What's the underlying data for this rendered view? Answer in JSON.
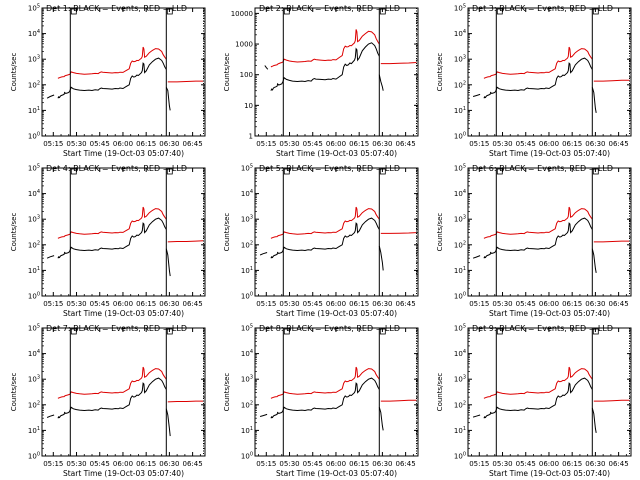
{
  "chart_data": {
    "type": "line",
    "title_template": "Det {n}: BLACK = Events, RED = LLD",
    "xlabel": "Start Time (19-Oct-03 05:07:40)",
    "ylabel": "Counts/sec",
    "x_tick_labels": [
      "05:15",
      "05:30",
      "05:45",
      "06:00",
      "06:15",
      "06:30",
      "06:45"
    ],
    "x_tick_minutes": [
      15,
      30,
      45,
      60,
      75,
      90,
      105
    ],
    "xlim_minutes": [
      7.7,
      113
    ],
    "markers_minutes": [
      26,
      88,
      112
    ],
    "colors": {
      "events": "#000000",
      "lld": "#dd0000",
      "axes": "#000000"
    },
    "legend": "in title",
    "shared_series": {
      "x": [
        18,
        18.5,
        19,
        19.5,
        20,
        21,
        22,
        22.3,
        23,
        24,
        25,
        25.8,
        26.5,
        28,
        30,
        32,
        35,
        38,
        40,
        42,
        44,
        45,
        46,
        47,
        50,
        53,
        55,
        57,
        58,
        60,
        62,
        64,
        65,
        66,
        67,
        68,
        69,
        70,
        72,
        72.5,
        73,
        73.5,
        74,
        75,
        77,
        79,
        81,
        83,
        85,
        86,
        87,
        87.5,
        88
      ],
      "events": [
        30,
        34,
        32,
        36,
        38,
        40,
        42,
        50,
        46,
        48,
        50,
        60,
        80,
        70,
        65,
        62,
        60,
        62,
        60,
        64,
        62,
        70,
        75,
        72,
        70,
        68,
        72,
        70,
        75,
        72,
        85,
        100,
        180,
        220,
        200,
        210,
        240,
        230,
        300,
        360,
        700,
        650,
        300,
        350,
        600,
        800,
        1000,
        1100,
        900,
        700,
        500,
        450,
        400
      ],
      "lld": [
        180,
        185,
        190,
        195,
        200,
        205,
        210,
        220,
        230,
        240,
        250,
        260,
        320,
        300,
        280,
        270,
        260,
        265,
        270,
        280,
        275,
        300,
        320,
        310,
        300,
        290,
        300,
        295,
        310,
        305,
        360,
        420,
        700,
        850,
        800,
        820,
        900,
        880,
        1100,
        1300,
        3000,
        2500,
        1200,
        1300,
        1800,
        2200,
        2600,
        2500,
        2000,
        1500,
        1200,
        1100,
        1000
      ]
    },
    "panels": [
      {
        "det": 1,
        "ylabel": "Counts/sec",
        "ylim": [
          1,
          100000
        ],
        "ytick_labels": [
          "10^0",
          "10^1",
          "10^2",
          "10^3",
          "10^4",
          "10^5"
        ],
        "pre_events": [
          [
            11,
            30
          ],
          [
            13,
            35
          ],
          [
            15.5,
            40
          ]
        ],
        "lld_right": [
          [
            89,
            130
          ],
          [
            95,
            130
          ],
          [
            101,
            135
          ],
          [
            107,
            140
          ],
          [
            112,
            140
          ]
        ],
        "events_right": [
          [
            88,
            80
          ],
          [
            89,
            60
          ],
          [
            90,
            15
          ],
          [
            90.5,
            10
          ]
        ]
      },
      {
        "det": 2,
        "ylabel": "Counts/sec",
        "ylim": [
          1,
          15000
        ],
        "ytick_labels": [
          "1",
          "10",
          "100",
          "1000",
          "10000"
        ],
        "pre_events": [
          [
            14,
            200
          ],
          [
            15,
            170
          ],
          [
            16,
            150
          ]
        ],
        "lld_right": [
          [
            89,
            230
          ],
          [
            95,
            230
          ],
          [
            101,
            235
          ],
          [
            107,
            240
          ],
          [
            112,
            250
          ]
        ],
        "events_right": [
          [
            88,
            100
          ],
          [
            89,
            60
          ],
          [
            90,
            40
          ],
          [
            90.5,
            30
          ]
        ]
      },
      {
        "det": 3,
        "ylabel": "Counts/sec",
        "ylim": [
          1,
          100000
        ],
        "ytick_labels": [
          "10^0",
          "10^1",
          "10^2",
          "10^3",
          "10^4",
          "10^5"
        ],
        "pre_events": [
          [
            11,
            35
          ],
          [
            13,
            38
          ],
          [
            15.5,
            42
          ]
        ],
        "lld_right": [
          [
            89,
            140
          ],
          [
            95,
            140
          ],
          [
            101,
            145
          ],
          [
            107,
            150
          ],
          [
            112,
            150
          ]
        ],
        "events_right": [
          [
            88,
            80
          ],
          [
            89,
            50
          ],
          [
            90,
            12
          ],
          [
            90.5,
            8
          ]
        ]
      },
      {
        "det": 4,
        "ylabel": "Counts/sec",
        "ylim": [
          1,
          100000
        ],
        "ytick_labels": [
          "10^0",
          "10^1",
          "10^2",
          "10^3",
          "10^4",
          "10^5"
        ],
        "pre_events": [
          [
            11,
            30
          ],
          [
            13,
            34
          ],
          [
            15.5,
            38
          ]
        ],
        "lld_right": [
          [
            89,
            130
          ],
          [
            95,
            135
          ],
          [
            101,
            135
          ],
          [
            107,
            140
          ],
          [
            112,
            145
          ]
        ],
        "events_right": [
          [
            88,
            70
          ],
          [
            89,
            40
          ],
          [
            90,
            10
          ],
          [
            90.5,
            6
          ]
        ]
      },
      {
        "det": 5,
        "ylabel": "Counts/sec",
        "ylim": [
          1,
          100000
        ],
        "ytick_labels": [
          "10^0",
          "10^1",
          "10^2",
          "10^3",
          "10^4",
          "10^5"
        ],
        "pre_events": [
          [
            11,
            40
          ],
          [
            13,
            45
          ],
          [
            15.5,
            50
          ]
        ],
        "lld_right": [
          [
            89,
            280
          ],
          [
            95,
            280
          ],
          [
            101,
            285
          ],
          [
            107,
            290
          ],
          [
            112,
            300
          ]
        ],
        "events_right": [
          [
            88,
            90
          ],
          [
            89,
            50
          ],
          [
            90,
            20
          ],
          [
            90.5,
            10
          ]
        ]
      },
      {
        "det": 6,
        "ylabel": "Counts/sec",
        "ylim": [
          1,
          100000
        ],
        "ytick_labels": [
          "10^0",
          "10^1",
          "10^2",
          "10^3",
          "10^4",
          "10^5"
        ],
        "pre_events": [
          [
            11,
            30
          ],
          [
            13,
            33
          ],
          [
            15.5,
            38
          ]
        ],
        "lld_right": [
          [
            89,
            130
          ],
          [
            95,
            130
          ],
          [
            101,
            135
          ],
          [
            107,
            140
          ],
          [
            112,
            140
          ]
        ],
        "events_right": [
          [
            88,
            70
          ],
          [
            89,
            40
          ],
          [
            90,
            12
          ],
          [
            90.5,
            8
          ]
        ]
      },
      {
        "det": 7,
        "ylabel": "Counts/sec",
        "ylim": [
          1,
          100000
        ],
        "ytick_labels": [
          "10^0",
          "10^1",
          "10^2",
          "10^3",
          "10^4",
          "10^5"
        ],
        "pre_events": [
          [
            11,
            32
          ],
          [
            13,
            36
          ],
          [
            15.5,
            40
          ]
        ],
        "lld_right": [
          [
            89,
            130
          ],
          [
            95,
            135
          ],
          [
            101,
            135
          ],
          [
            107,
            140
          ],
          [
            112,
            140
          ]
        ],
        "events_right": [
          [
            88,
            70
          ],
          [
            89,
            40
          ],
          [
            90,
            12
          ],
          [
            90.5,
            6
          ]
        ]
      },
      {
        "det": 8,
        "ylabel": "Counts/sec",
        "ylim": [
          1,
          100000
        ],
        "ytick_labels": [
          "10^0",
          "10^1",
          "10^2",
          "10^3",
          "10^4",
          "10^5"
        ],
        "pre_events": [
          [
            11,
            35
          ],
          [
            13,
            38
          ],
          [
            15.5,
            42
          ]
        ],
        "lld_right": [
          [
            89,
            140
          ],
          [
            95,
            140
          ],
          [
            101,
            145
          ],
          [
            107,
            150
          ],
          [
            112,
            150
          ]
        ],
        "events_right": [
          [
            88,
            80
          ],
          [
            89,
            50
          ],
          [
            90,
            15
          ],
          [
            90.5,
            10
          ]
        ]
      },
      {
        "det": 9,
        "ylabel": "Counts/sec",
        "ylim": [
          1,
          100000
        ],
        "ytick_labels": [
          "10^0",
          "10^1",
          "10^2",
          "10^3",
          "10^4",
          "10^5"
        ],
        "pre_events": [
          [
            11,
            33
          ],
          [
            13,
            36
          ],
          [
            15.5,
            40
          ]
        ],
        "lld_right": [
          [
            89,
            140
          ],
          [
            95,
            140
          ],
          [
            101,
            145
          ],
          [
            107,
            150
          ],
          [
            112,
            150
          ]
        ],
        "events_right": [
          [
            88,
            75
          ],
          [
            89,
            45
          ],
          [
            90,
            12
          ],
          [
            90.5,
            8
          ]
        ]
      }
    ]
  }
}
